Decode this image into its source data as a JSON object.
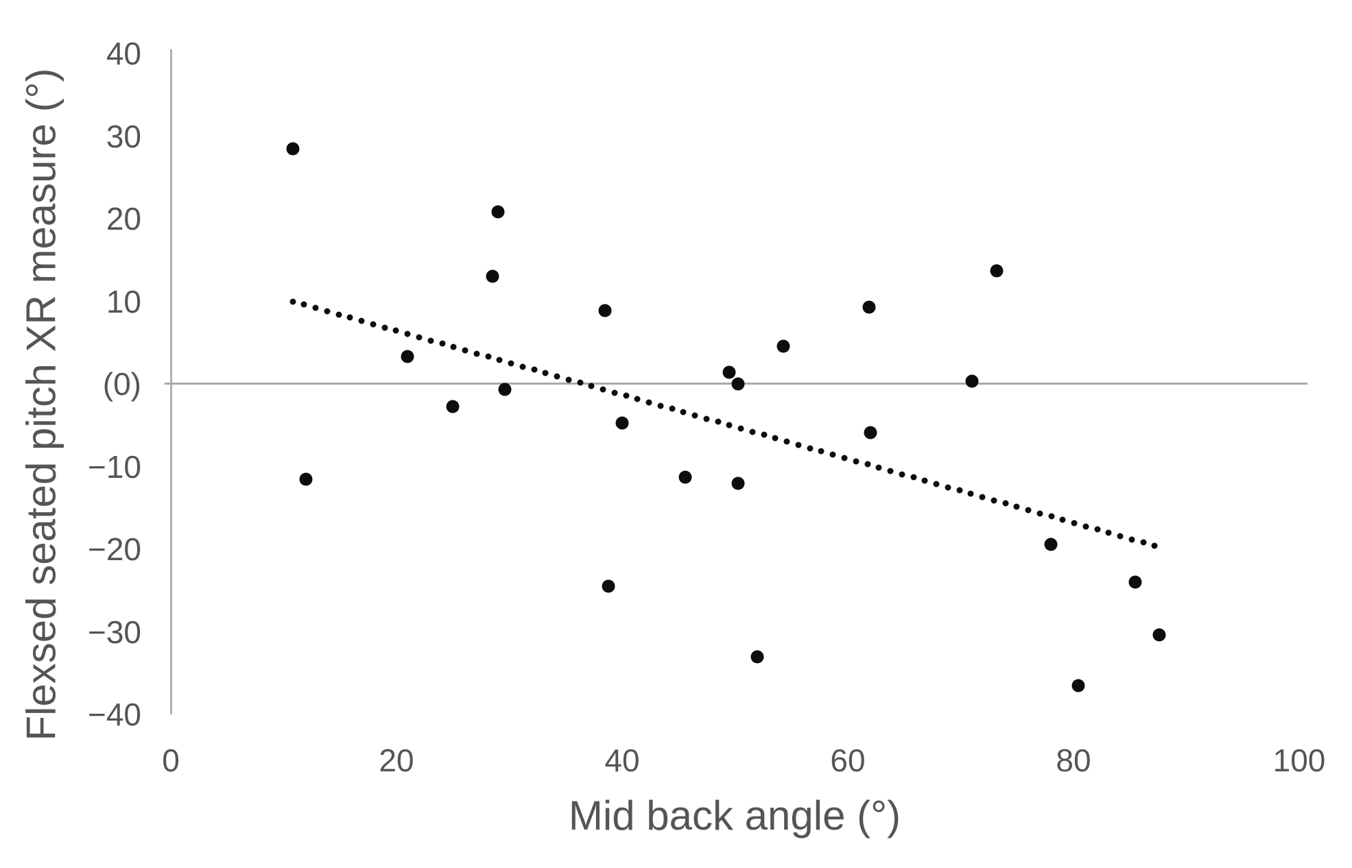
{
  "chart_data": {
    "type": "scatter",
    "title": "",
    "xlabel": "Mid back angle (°)",
    "ylabel": "Flexsed seated pitch XR measure (°)",
    "xlim": [
      0,
      100
    ],
    "ylim": [
      -40,
      40
    ],
    "grid": "zero-line-only",
    "legend": "none",
    "x_ticks": [
      {
        "value": 0,
        "label": "0"
      },
      {
        "value": 20,
        "label": "20"
      },
      {
        "value": 40,
        "label": "40"
      },
      {
        "value": 60,
        "label": "60"
      },
      {
        "value": 80,
        "label": "80"
      },
      {
        "value": 100,
        "label": "100"
      }
    ],
    "y_ticks": [
      {
        "value": 40,
        "label": "40"
      },
      {
        "value": 30,
        "label": "30"
      },
      {
        "value": 20,
        "label": "20"
      },
      {
        "value": 10,
        "label": "10"
      },
      {
        "value": 0,
        "label": "(0)"
      },
      {
        "value": -10,
        "label": "−10"
      },
      {
        "value": -20,
        "label": "−20"
      },
      {
        "value": -30,
        "label": "−30"
      },
      {
        "value": -40,
        "label": "−40"
      }
    ],
    "points": [
      {
        "x": 10.8,
        "y": 28.5
      },
      {
        "x": 12.0,
        "y": -11.5
      },
      {
        "x": 21.0,
        "y": 3.3
      },
      {
        "x": 25.0,
        "y": -2.7
      },
      {
        "x": 28.5,
        "y": 13.0
      },
      {
        "x": 29.0,
        "y": 20.8
      },
      {
        "x": 29.6,
        "y": -0.7
      },
      {
        "x": 38.5,
        "y": 8.9
      },
      {
        "x": 38.8,
        "y": -24.5
      },
      {
        "x": 40.0,
        "y": -4.7
      },
      {
        "x": 45.6,
        "y": -11.3
      },
      {
        "x": 49.5,
        "y": 1.4
      },
      {
        "x": 50.3,
        "y": 0.0
      },
      {
        "x": 50.3,
        "y": -12.0
      },
      {
        "x": 52.0,
        "y": -33.0
      },
      {
        "x": 54.3,
        "y": 4.6
      },
      {
        "x": 61.9,
        "y": 9.3
      },
      {
        "x": 62.0,
        "y": -5.9
      },
      {
        "x": 71.0,
        "y": 0.3
      },
      {
        "x": 73.2,
        "y": 13.7
      },
      {
        "x": 78.0,
        "y": -19.4
      },
      {
        "x": 80.4,
        "y": -36.5
      },
      {
        "x": 85.5,
        "y": -24.0
      },
      {
        "x": 87.6,
        "y": -30.4
      }
    ],
    "trendline": {
      "style": "dotted",
      "x1": 10.8,
      "y1": 10.0,
      "x2": 87.2,
      "y2": -19.6
    },
    "colors": {
      "point": "#0d0d0d",
      "trend": "#0d0d0d",
      "axis_line": "#b0b0b0",
      "zero_line": "#a9a9a9",
      "text": "#555555"
    }
  }
}
